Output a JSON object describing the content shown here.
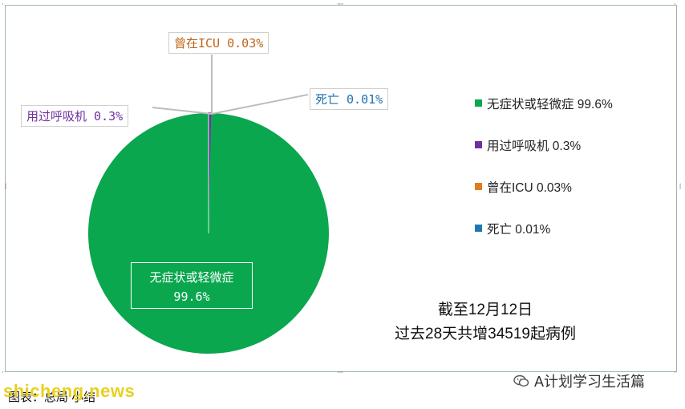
{
  "chart_data": {
    "type": "pie",
    "slices": [
      {
        "name": "无症状或轻微症",
        "value": 99.6,
        "color": "#0aa74f"
      },
      {
        "name": "用过呼吸机",
        "value": 0.3,
        "color": "#7030a0"
      },
      {
        "name": "曾在ICU",
        "value": 0.03,
        "color": "#e07b1f"
      },
      {
        "name": "死亡",
        "value": 0.01,
        "color": "#1f78b4"
      }
    ],
    "legend": {
      "position": "right",
      "entries": [
        "无症状或轻微症 99.6%",
        "用过呼吸机 0.3%",
        "曾在ICU 0.03%",
        "死亡 0.01%"
      ]
    },
    "callouts": {
      "icu": "曾在ICU 0.03%",
      "death": "死亡 0.01%",
      "ventilator": "用过呼吸机 0.3%",
      "main_name": "无症状或轻微症",
      "main_value": "99.6%"
    }
  },
  "note": {
    "line1": "截至12月12日",
    "line2": "过去28天共增34519起病例"
  },
  "footer": {
    "caption": "图表：总局 小结",
    "watermark_left": "shicheng.news",
    "watermark_right": "A计划学习生活篇"
  },
  "colors": {
    "callout_icu_text": "#c0651a",
    "callout_death_text": "#1f6fae",
    "callout_vent_text": "#7030a0"
  }
}
